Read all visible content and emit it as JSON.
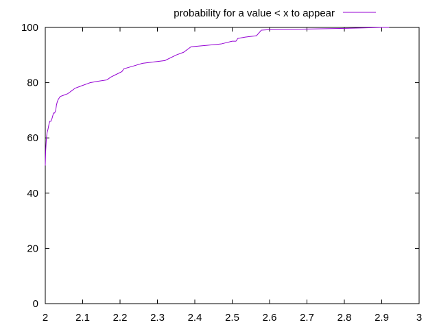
{
  "chart_data": {
    "type": "line",
    "title": "",
    "xlabel": "",
    "ylabel": "",
    "xlim": [
      2,
      3
    ],
    "ylim": [
      0,
      100
    ],
    "x_ticks": [
      2,
      2.1,
      2.2,
      2.3,
      2.4,
      2.5,
      2.6,
      2.7,
      2.8,
      2.9,
      3
    ],
    "x_tick_labels": [
      "2",
      "2.1",
      "2.2",
      "2.3",
      "2.4",
      "2.5",
      "2.6",
      "2.7",
      "2.8",
      "2.9",
      "3"
    ],
    "y_ticks": [
      0,
      20,
      40,
      60,
      80,
      100
    ],
    "y_tick_labels": [
      "0",
      "20",
      "40",
      "60",
      "80",
      "100"
    ],
    "grid": false,
    "legend_position": "top",
    "series": [
      {
        "name": "probability for a value < x to appear",
        "color": "#9400d3",
        "x": [
          2.0,
          2.001,
          2.003,
          2.005,
          2.007,
          2.01,
          2.012,
          2.015,
          2.018,
          2.02,
          2.022,
          2.025,
          2.028,
          2.03,
          2.032,
          2.035,
          2.04,
          2.05,
          2.06,
          2.07,
          2.08,
          2.1,
          2.12,
          2.14,
          2.165,
          2.175,
          2.19,
          2.205,
          2.21,
          2.235,
          2.26,
          2.29,
          2.32,
          2.35,
          2.37,
          2.39,
          2.43,
          2.47,
          2.5,
          2.51,
          2.515,
          2.535,
          2.565,
          2.578,
          2.6,
          2.7,
          2.85,
          2.9,
          2.92
        ],
        "y": [
          50,
          55,
          60,
          62,
          63,
          65,
          66,
          66,
          67,
          68,
          69,
          69,
          70,
          72,
          73,
          74,
          75,
          75.5,
          76,
          77,
          78,
          79,
          80,
          80.5,
          81,
          82,
          83,
          84,
          85,
          86,
          87,
          87.5,
          88,
          90,
          91,
          93,
          93.5,
          94,
          95,
          95,
          96,
          96.5,
          97,
          99,
          99.2,
          99.4,
          99.8,
          100,
          100
        ]
      }
    ]
  }
}
